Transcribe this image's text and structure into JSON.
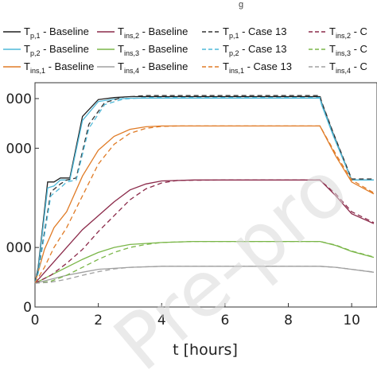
{
  "chart_data": {
    "type": "line",
    "title": "",
    "top_fragment": "g",
    "watermark": "Pre-pro",
    "xlabel": "t [hours]",
    "ylabel": "",
    "xlim": [
      0,
      10.8
    ],
    "ylim": [
      0,
      1130
    ],
    "x_ticks": [
      0,
      2,
      4,
      6,
      8,
      10
    ],
    "y_ticks": [
      0,
      500,
      1000
    ],
    "y_tick_labels": [
      "0",
      "000",
      "000",
      "000"
    ],
    "y_tick_values": [
      0,
      300,
      800,
      1050
    ],
    "legend_position": "top",
    "series": [
      {
        "name": "T",
        "sub": "p,1",
        "suffix": " - Baseline",
        "color": "#1f1f1f",
        "dash": false,
        "x": [
          0,
          0.1,
          0.4,
          0.6,
          0.8,
          1.1,
          1.5,
          2.0,
          2.5,
          3.0,
          4.0,
          6.0,
          8.0,
          9.0,
          9.05,
          9.4,
          10.0,
          10.7
        ],
        "y": [
          120,
          200,
          630,
          630,
          650,
          650,
          960,
          1045,
          1055,
          1060,
          1060,
          1060,
          1060,
          1060,
          1030,
          880,
          640,
          640
        ]
      },
      {
        "name": "T",
        "sub": "p,2",
        "suffix": " - Baseline",
        "color": "#4fb8d8",
        "dash": false,
        "x": [
          0,
          0.1,
          0.4,
          0.6,
          0.8,
          1.1,
          1.5,
          2.0,
          2.5,
          3.0,
          4.0,
          6.0,
          8.0,
          9.0,
          9.05,
          9.4,
          10.0,
          10.7
        ],
        "y": [
          120,
          190,
          600,
          610,
          640,
          640,
          940,
          1035,
          1048,
          1052,
          1052,
          1052,
          1052,
          1052,
          1020,
          870,
          640,
          640
        ]
      },
      {
        "name": "T",
        "sub": "ins,1",
        "suffix": " - Baseline",
        "color": "#e07b26",
        "dash": false,
        "x": [
          0,
          0.3,
          0.6,
          1.0,
          1.5,
          2.0,
          2.5,
          3.0,
          3.5,
          4.0,
          5.0,
          6.0,
          8.0,
          9.0,
          9.5,
          10.0,
          10.7
        ],
        "y": [
          120,
          290,
          400,
          480,
          660,
          790,
          860,
          895,
          908,
          912,
          912,
          912,
          912,
          912,
          760,
          630,
          570
        ]
      },
      {
        "name": "T",
        "sub": "ins,2",
        "suffix": " - Baseline",
        "color": "#8b2a4a",
        "dash": false,
        "x": [
          0,
          0.5,
          1.0,
          1.5,
          2.0,
          2.5,
          3.0,
          3.5,
          4.0,
          5.0,
          6.0,
          8.0,
          9.0,
          9.5,
          10.0,
          10.7
        ],
        "y": [
          120,
          210,
          300,
          390,
          460,
          530,
          590,
          620,
          635,
          640,
          640,
          640,
          640,
          560,
          470,
          420
        ]
      },
      {
        "name": "T",
        "sub": "ins,3",
        "suffix": " - Baseline",
        "color": "#7ab648",
        "dash": false,
        "x": [
          0,
          0.5,
          1.0,
          1.5,
          2.0,
          2.5,
          3.0,
          4.0,
          5.0,
          6.0,
          8.0,
          9.0,
          9.5,
          10.0,
          10.7
        ],
        "y": [
          120,
          160,
          200,
          240,
          275,
          300,
          315,
          325,
          330,
          330,
          330,
          330,
          310,
          280,
          250
        ]
      },
      {
        "name": "T",
        "sub": "ins,4",
        "suffix": " - Baseline",
        "color": "#a0a0a0",
        "dash": false,
        "x": [
          0,
          0.5,
          1.0,
          1.5,
          2.0,
          3.0,
          4.0,
          6.0,
          8.0,
          9.0,
          9.5,
          10.0,
          10.7
        ],
        "y": [
          120,
          140,
          160,
          175,
          190,
          200,
          205,
          205,
          205,
          205,
          200,
          190,
          175
        ]
      },
      {
        "name": "T",
        "sub": "p,1",
        "suffix": " - Case 13",
        "color": "#333333",
        "dash": true,
        "x": [
          0,
          0.1,
          0.5,
          0.8,
          1.0,
          1.3,
          1.7,
          2.2,
          2.8,
          3.5,
          4.0,
          6.0,
          8.0,
          9.0,
          9.05,
          9.4,
          10.0,
          10.7
        ],
        "y": [
          120,
          180,
          580,
          620,
          640,
          650,
          920,
          1030,
          1058,
          1065,
          1065,
          1065,
          1065,
          1065,
          1035,
          885,
          645,
          645
        ]
      },
      {
        "name": "T",
        "sub": "p,2",
        "suffix": " - Case 13",
        "color": "#4fb8d8",
        "dash": true,
        "x": [
          0,
          0.1,
          0.5,
          0.8,
          1.0,
          1.3,
          1.7,
          2.2,
          2.8,
          3.5,
          4.0,
          6.0,
          8.0,
          9.0,
          9.05,
          9.4,
          10.0,
          10.7
        ],
        "y": [
          120,
          170,
          560,
          600,
          630,
          640,
          900,
          1020,
          1048,
          1055,
          1055,
          1055,
          1055,
          1055,
          1025,
          875,
          640,
          640
        ]
      },
      {
        "name": "T",
        "sub": "ins,1",
        "suffix": " - Case 13",
        "color": "#e07b26",
        "dash": true,
        "x": [
          0,
          0.3,
          0.6,
          1.0,
          1.5,
          2.0,
          2.5,
          3.0,
          3.5,
          4.0,
          4.5,
          6.0,
          8.0,
          9.0,
          9.5,
          10.0,
          10.7
        ],
        "y": [
          120,
          200,
          300,
          400,
          560,
          720,
          820,
          875,
          900,
          910,
          912,
          912,
          912,
          912,
          770,
          640,
          575
        ]
      },
      {
        "name": "T",
        "sub": "ins,2",
        "suffix": " - Case 13",
        "color": "#8b2a4a",
        "dash": true,
        "x": [
          0,
          0.5,
          1.0,
          1.5,
          2.0,
          2.5,
          3.0,
          3.5,
          4.0,
          4.5,
          6.0,
          8.0,
          9.0,
          9.5,
          10.0,
          10.7
        ],
        "y": [
          120,
          160,
          220,
          290,
          380,
          460,
          540,
          595,
          625,
          638,
          640,
          640,
          640,
          570,
          480,
          425
        ]
      },
      {
        "name": "T",
        "sub": "ins,3",
        "suffix": " - Case 13",
        "color": "#7ab648",
        "dash": true,
        "x": [
          0,
          0.5,
          1.0,
          1.5,
          2.0,
          2.5,
          3.0,
          3.5,
          4.0,
          5.0,
          6.0,
          8.0,
          9.0,
          9.5,
          10.0,
          10.7
        ],
        "y": [
          120,
          130,
          160,
          200,
          240,
          275,
          300,
          315,
          325,
          330,
          330,
          330,
          330,
          312,
          282,
          252
        ]
      },
      {
        "name": "T",
        "sub": "ins,4",
        "suffix": " - Case 13",
        "color": "#a0a0a0",
        "dash": true,
        "x": [
          0,
          0.5,
          1.0,
          1.5,
          2.0,
          2.5,
          3.0,
          4.0,
          6.0,
          8.0,
          9.0,
          9.5,
          10.0,
          10.7
        ],
        "y": [
          120,
          125,
          140,
          160,
          178,
          192,
          200,
          205,
          205,
          205,
          205,
          200,
          190,
          176
        ]
      }
    ],
    "legend_truncated_labels": [
      "C",
      "C",
      "C"
    ]
  }
}
